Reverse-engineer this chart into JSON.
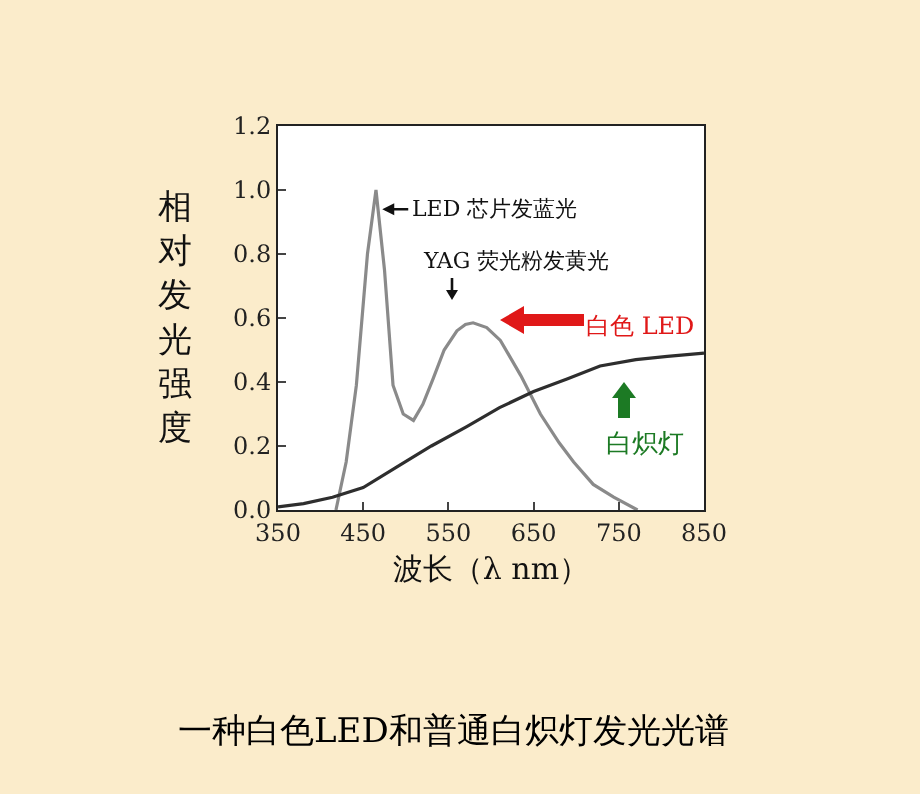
{
  "chart_data": {
    "type": "line",
    "title": "一种白色LED和普通白炽灯发光光谱",
    "xlabel": "波长（λ nm）",
    "ylabel": "相对发光强度",
    "xlim": [
      350,
      850
    ],
    "xticks": [
      350,
      450,
      550,
      650,
      750,
      850
    ],
    "ylim": [
      0,
      1.2
    ],
    "yticks": [
      {
        "value": 0,
        "label": "0.0"
      },
      {
        "value": 0.2,
        "label": "0.2"
      },
      {
        "value": 0.4,
        "label": "0.4"
      },
      {
        "value": 0.6,
        "label": "0.6"
      },
      {
        "value": 0.8,
        "label": "0.8"
      },
      {
        "value": 1,
        "label": "1.0"
      },
      {
        "value": 1.2,
        "label": "1.2"
      }
    ],
    "series": [
      {
        "color": "#8a8a8a",
        "x": [
          418,
          430,
          442,
          455,
          465,
          475,
          485,
          497,
          509,
          520,
          532,
          545,
          560,
          570,
          579,
          595,
          611,
          635,
          658,
          680,
          697,
          720,
          744,
          772
        ],
        "values": [
          0,
          0.15,
          0.39,
          0.8,
          1.0,
          0.75,
          0.39,
          0.3,
          0.28,
          0.33,
          0.41,
          0.5,
          0.56,
          0.58,
          0.585,
          0.57,
          0.53,
          0.42,
          0.3,
          0.21,
          0.15,
          0.08,
          0.04,
          0
        ]
      },
      {
        "color": "#2e2e2e",
        "x": [
          350,
          380,
          414,
          450,
          493,
          530,
          571,
          610,
          650,
          690,
          728,
          770,
          807,
          850
        ],
        "values": [
          0.01,
          0.02,
          0.04,
          0.07,
          0.14,
          0.2,
          0.26,
          0.32,
          0.37,
          0.41,
          0.45,
          0.47,
          0.48,
          0.49
        ]
      }
    ],
    "annotations": [
      {
        "text": "LED 芯片发蓝光",
        "x": 470,
        "y": 0.94
      },
      "YAG 荧光粉发黄光",
      "白色 LED",
      "白炽灯"
    ],
    "grid": false,
    "marker": "none"
  }
}
